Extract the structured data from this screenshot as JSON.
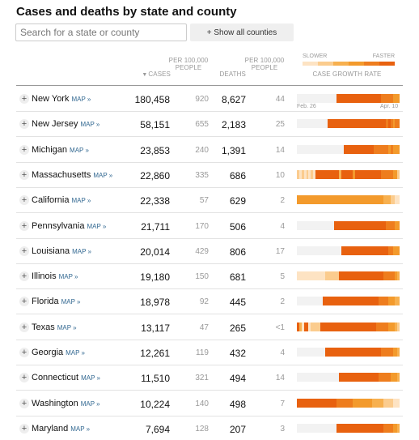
{
  "title": "Cases and deaths by state and county",
  "search": {
    "placeholder": "Search for a state or county"
  },
  "show_all_label": "+ Show all counties",
  "headers": {
    "sort_icon": "▼",
    "cases": "CASES",
    "per_100k_cases": "PER 100,000 PEOPLE",
    "deaths": "DEATHS",
    "per_100k_deaths": "PER 100,000 PEOPLE",
    "growth": "CASE GROWTH RATE"
  },
  "legend": {
    "slower": "SLOWER",
    "faster": "FASTER"
  },
  "axis": {
    "start": "Feb. 26",
    "end": "Apr. 10"
  },
  "colors": {
    "levels": [
      "#f2f2f2",
      "#fde3c3",
      "#fbcc8e",
      "#f7b04f",
      "#f39a2c",
      "#ee7d1e",
      "#e8610f"
    ],
    "link": "#326891"
  },
  "map_label": "MAP »",
  "expander_icon": "+",
  "states": [
    {
      "name": "New York",
      "cases": "180,458",
      "per_cases": "920",
      "deaths": "8,627",
      "per_deaths": "44",
      "growth": [
        0,
        0,
        0,
        0,
        0,
        0,
        0,
        0,
        0,
        0,
        0,
        0,
        0,
        0,
        0,
        0,
        0,
        6,
        6,
        6,
        6,
        6,
        6,
        6,
        6,
        6,
        6,
        6,
        6,
        6,
        6,
        6,
        6,
        6,
        6,
        6,
        5,
        5,
        5,
        5,
        5,
        4,
        4,
        4
      ]
    },
    {
      "name": "New Jersey",
      "cases": "58,151",
      "per_cases": "655",
      "deaths": "2,183",
      "per_deaths": "25",
      "growth": [
        0,
        0,
        0,
        0,
        0,
        0,
        0,
        0,
        0,
        0,
        0,
        0,
        0,
        6,
        6,
        6,
        6,
        6,
        6,
        6,
        6,
        6,
        6,
        6,
        6,
        6,
        6,
        6,
        6,
        6,
        6,
        6,
        6,
        6,
        6,
        6,
        6,
        6,
        5,
        6,
        5,
        4,
        5,
        5
      ]
    },
    {
      "name": "Michigan",
      "cases": "23,853",
      "per_cases": "240",
      "deaths": "1,391",
      "per_deaths": "14",
      "growth": [
        0,
        0,
        0,
        0,
        0,
        0,
        0,
        0,
        0,
        0,
        0,
        0,
        0,
        0,
        0,
        0,
        0,
        0,
        0,
        0,
        6,
        6,
        6,
        6,
        6,
        6,
        6,
        6,
        6,
        6,
        6,
        6,
        6,
        5,
        5,
        5,
        5,
        5,
        5,
        4,
        5,
        4,
        4,
        4
      ]
    },
    {
      "name": "Massachusetts",
      "cases": "22,860",
      "per_cases": "335",
      "deaths": "686",
      "per_deaths": "10",
      "growth": [
        2,
        1,
        2,
        1,
        2,
        1,
        2,
        1,
        6,
        6,
        6,
        6,
        6,
        6,
        6,
        6,
        6,
        6,
        3,
        6,
        6,
        6,
        6,
        6,
        4,
        6,
        6,
        6,
        6,
        6,
        6,
        6,
        6,
        6,
        6,
        6,
        5,
        5,
        5,
        5,
        5,
        4,
        4,
        2
      ]
    },
    {
      "name": "California",
      "cases": "22,338",
      "per_cases": "57",
      "deaths": "629",
      "per_deaths": "2",
      "growth": [
        4,
        4,
        4,
        4,
        4,
        4,
        4,
        4,
        4,
        4,
        4,
        4,
        4,
        4,
        4,
        4,
        4,
        4,
        4,
        4,
        4,
        4,
        4,
        4,
        4,
        4,
        4,
        4,
        4,
        4,
        4,
        4,
        4,
        4,
        4,
        4,
        4,
        3,
        3,
        3,
        2,
        2,
        1,
        1
      ]
    },
    {
      "name": "Pennsylvania",
      "cases": "21,711",
      "per_cases": "170",
      "deaths": "506",
      "per_deaths": "4",
      "growth": [
        0,
        0,
        0,
        0,
        0,
        0,
        0,
        0,
        0,
        0,
        0,
        0,
        0,
        0,
        0,
        0,
        6,
        6,
        6,
        6,
        6,
        6,
        6,
        6,
        6,
        6,
        6,
        6,
        6,
        6,
        6,
        6,
        6,
        6,
        6,
        6,
        6,
        6,
        5,
        5,
        5,
        5,
        4,
        4
      ]
    },
    {
      "name": "Louisiana",
      "cases": "20,014",
      "per_cases": "429",
      "deaths": "806",
      "per_deaths": "17",
      "growth": [
        0,
        0,
        0,
        0,
        0,
        0,
        0,
        0,
        0,
        0,
        0,
        0,
        0,
        0,
        0,
        0,
        0,
        0,
        0,
        6,
        6,
        6,
        6,
        6,
        6,
        6,
        6,
        6,
        6,
        6,
        6,
        6,
        6,
        6,
        6,
        6,
        6,
        6,
        6,
        5,
        5,
        4,
        4,
        4
      ]
    },
    {
      "name": "Illinois",
      "cases": "19,180",
      "per_cases": "150",
      "deaths": "681",
      "per_deaths": "5",
      "growth": [
        1,
        1,
        1,
        1,
        1,
        1,
        1,
        1,
        1,
        1,
        1,
        1,
        2,
        2,
        2,
        2,
        2,
        2,
        6,
        6,
        6,
        6,
        6,
        6,
        6,
        6,
        6,
        6,
        6,
        6,
        6,
        6,
        6,
        6,
        6,
        6,
        6,
        5,
        5,
        5,
        5,
        5,
        4,
        3
      ]
    },
    {
      "name": "Florida",
      "cases": "18,978",
      "per_cases": "92",
      "deaths": "445",
      "per_deaths": "2",
      "growth": [
        0,
        0,
        0,
        0,
        0,
        0,
        0,
        0,
        0,
        0,
        0,
        6,
        6,
        6,
        6,
        6,
        6,
        6,
        6,
        6,
        6,
        6,
        6,
        6,
        6,
        6,
        6,
        6,
        6,
        6,
        6,
        6,
        6,
        6,
        6,
        5,
        5,
        5,
        5,
        4,
        4,
        4,
        3,
        3
      ]
    },
    {
      "name": "Texas",
      "cases": "13,117",
      "per_cases": "47",
      "deaths": "265",
      "per_deaths": "<1",
      "growth": [
        6,
        3,
        1,
        6,
        6,
        1,
        2,
        2,
        2,
        2,
        6,
        6,
        6,
        6,
        6,
        6,
        6,
        6,
        6,
        6,
        6,
        6,
        6,
        6,
        6,
        6,
        6,
        6,
        6,
        6,
        6,
        6,
        6,
        6,
        5,
        5,
        5,
        5,
        5,
        4,
        4,
        4,
        3,
        2
      ]
    },
    {
      "name": "Georgia",
      "cases": "12,261",
      "per_cases": "119",
      "deaths": "432",
      "per_deaths": "4",
      "growth": [
        0,
        0,
        0,
        0,
        0,
        0,
        0,
        0,
        0,
        0,
        0,
        0,
        6,
        6,
        6,
        6,
        6,
        6,
        6,
        6,
        6,
        6,
        6,
        6,
        6,
        6,
        6,
        6,
        6,
        6,
        6,
        6,
        6,
        6,
        6,
        6,
        5,
        5,
        5,
        5,
        5,
        4,
        4,
        3
      ]
    },
    {
      "name": "Connecticut",
      "cases": "11,510",
      "per_cases": "321",
      "deaths": "494",
      "per_deaths": "14",
      "growth": [
        0,
        0,
        0,
        0,
        0,
        0,
        0,
        0,
        0,
        0,
        0,
        0,
        0,
        0,
        0,
        0,
        0,
        0,
        6,
        6,
        6,
        6,
        6,
        6,
        6,
        6,
        6,
        6,
        6,
        6,
        6,
        6,
        6,
        6,
        6,
        5,
        5,
        5,
        5,
        5,
        4,
        4,
        4,
        3
      ]
    },
    {
      "name": "Washington",
      "cases": "10,224",
      "per_cases": "140",
      "deaths": "498",
      "per_deaths": "7",
      "growth": [
        6,
        6,
        6,
        6,
        6,
        6,
        6,
        6,
        6,
        6,
        6,
        6,
        6,
        6,
        6,
        6,
        6,
        5,
        5,
        5,
        5,
        5,
        5,
        5,
        4,
        4,
        4,
        4,
        4,
        4,
        4,
        4,
        3,
        3,
        3,
        3,
        3,
        2,
        2,
        2,
        2,
        1,
        1,
        1
      ]
    },
    {
      "name": "Maryland",
      "cases": "7,694",
      "per_cases": "128",
      "deaths": "207",
      "per_deaths": "3",
      "growth": [
        0,
        0,
        0,
        0,
        0,
        0,
        0,
        0,
        0,
        0,
        0,
        0,
        0,
        0,
        0,
        0,
        0,
        6,
        6,
        6,
        6,
        6,
        6,
        6,
        6,
        6,
        6,
        6,
        6,
        6,
        6,
        6,
        6,
        6,
        6,
        6,
        6,
        5,
        5,
        5,
        5,
        4,
        4,
        3
      ]
    }
  ]
}
